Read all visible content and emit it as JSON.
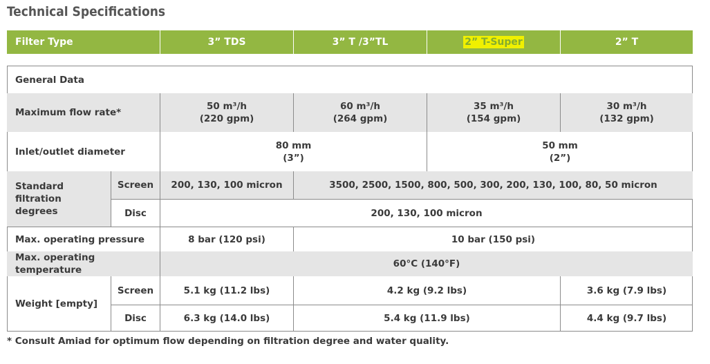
{
  "title": "Technical Specifications",
  "table": {
    "header": [
      "Filter Type",
      "3” TDS",
      "3” T /3”TL",
      "2” T-Super",
      "2” T"
    ],
    "section": "General Data",
    "rows": [
      {
        "label": "Maximum flow rate*",
        "values": [
          "50 m³/h\n(220 gpm)",
          "60 m³/h\n(264 gpm)",
          "35 m³/h\n(154 gpm)",
          "30 m³/h\n(132 gpm)"
        ]
      },
      {
        "label": "Inlet/outlet diameter",
        "values": [
          "80 mm\n(3”)",
          "50 mm\n(2”)"
        ]
      },
      {
        "label": "Standard filtration\ndegrees",
        "sub": [
          {
            "name": "Screen",
            "values": [
              "200, 130, 100 micron",
              "3500, 2500, 1500, 800, 500, 300, 200, 130, 100, 80, 50 micron"
            ]
          },
          {
            "name": "Disc",
            "values": [
              "200, 130, 100 micron"
            ]
          }
        ]
      },
      {
        "label": "Max. operating pressure",
        "values": [
          "8 bar (120 psi)",
          "10 bar (150 psi)"
        ]
      },
      {
        "label": "Max. operating temperature",
        "values": [
          "60°C (140°F)"
        ]
      },
      {
        "label": "Weight [empty]",
        "sub": [
          {
            "name": "Screen",
            "values": [
              "5.1 kg (11.2 lbs)",
              "4.2 kg (9.2 lbs)",
              "3.6 kg (7.9 lbs)"
            ]
          },
          {
            "name": "Disc",
            "values": [
              "6.3 kg (14.0 lbs)",
              "5.4 kg (11.9 lbs)",
              "4.4 kg (9.7 lbs)"
            ]
          }
        ]
      }
    ]
  },
  "footnote": "* Consult Amiad for optimum flow depending on filtration degree and water quality."
}
